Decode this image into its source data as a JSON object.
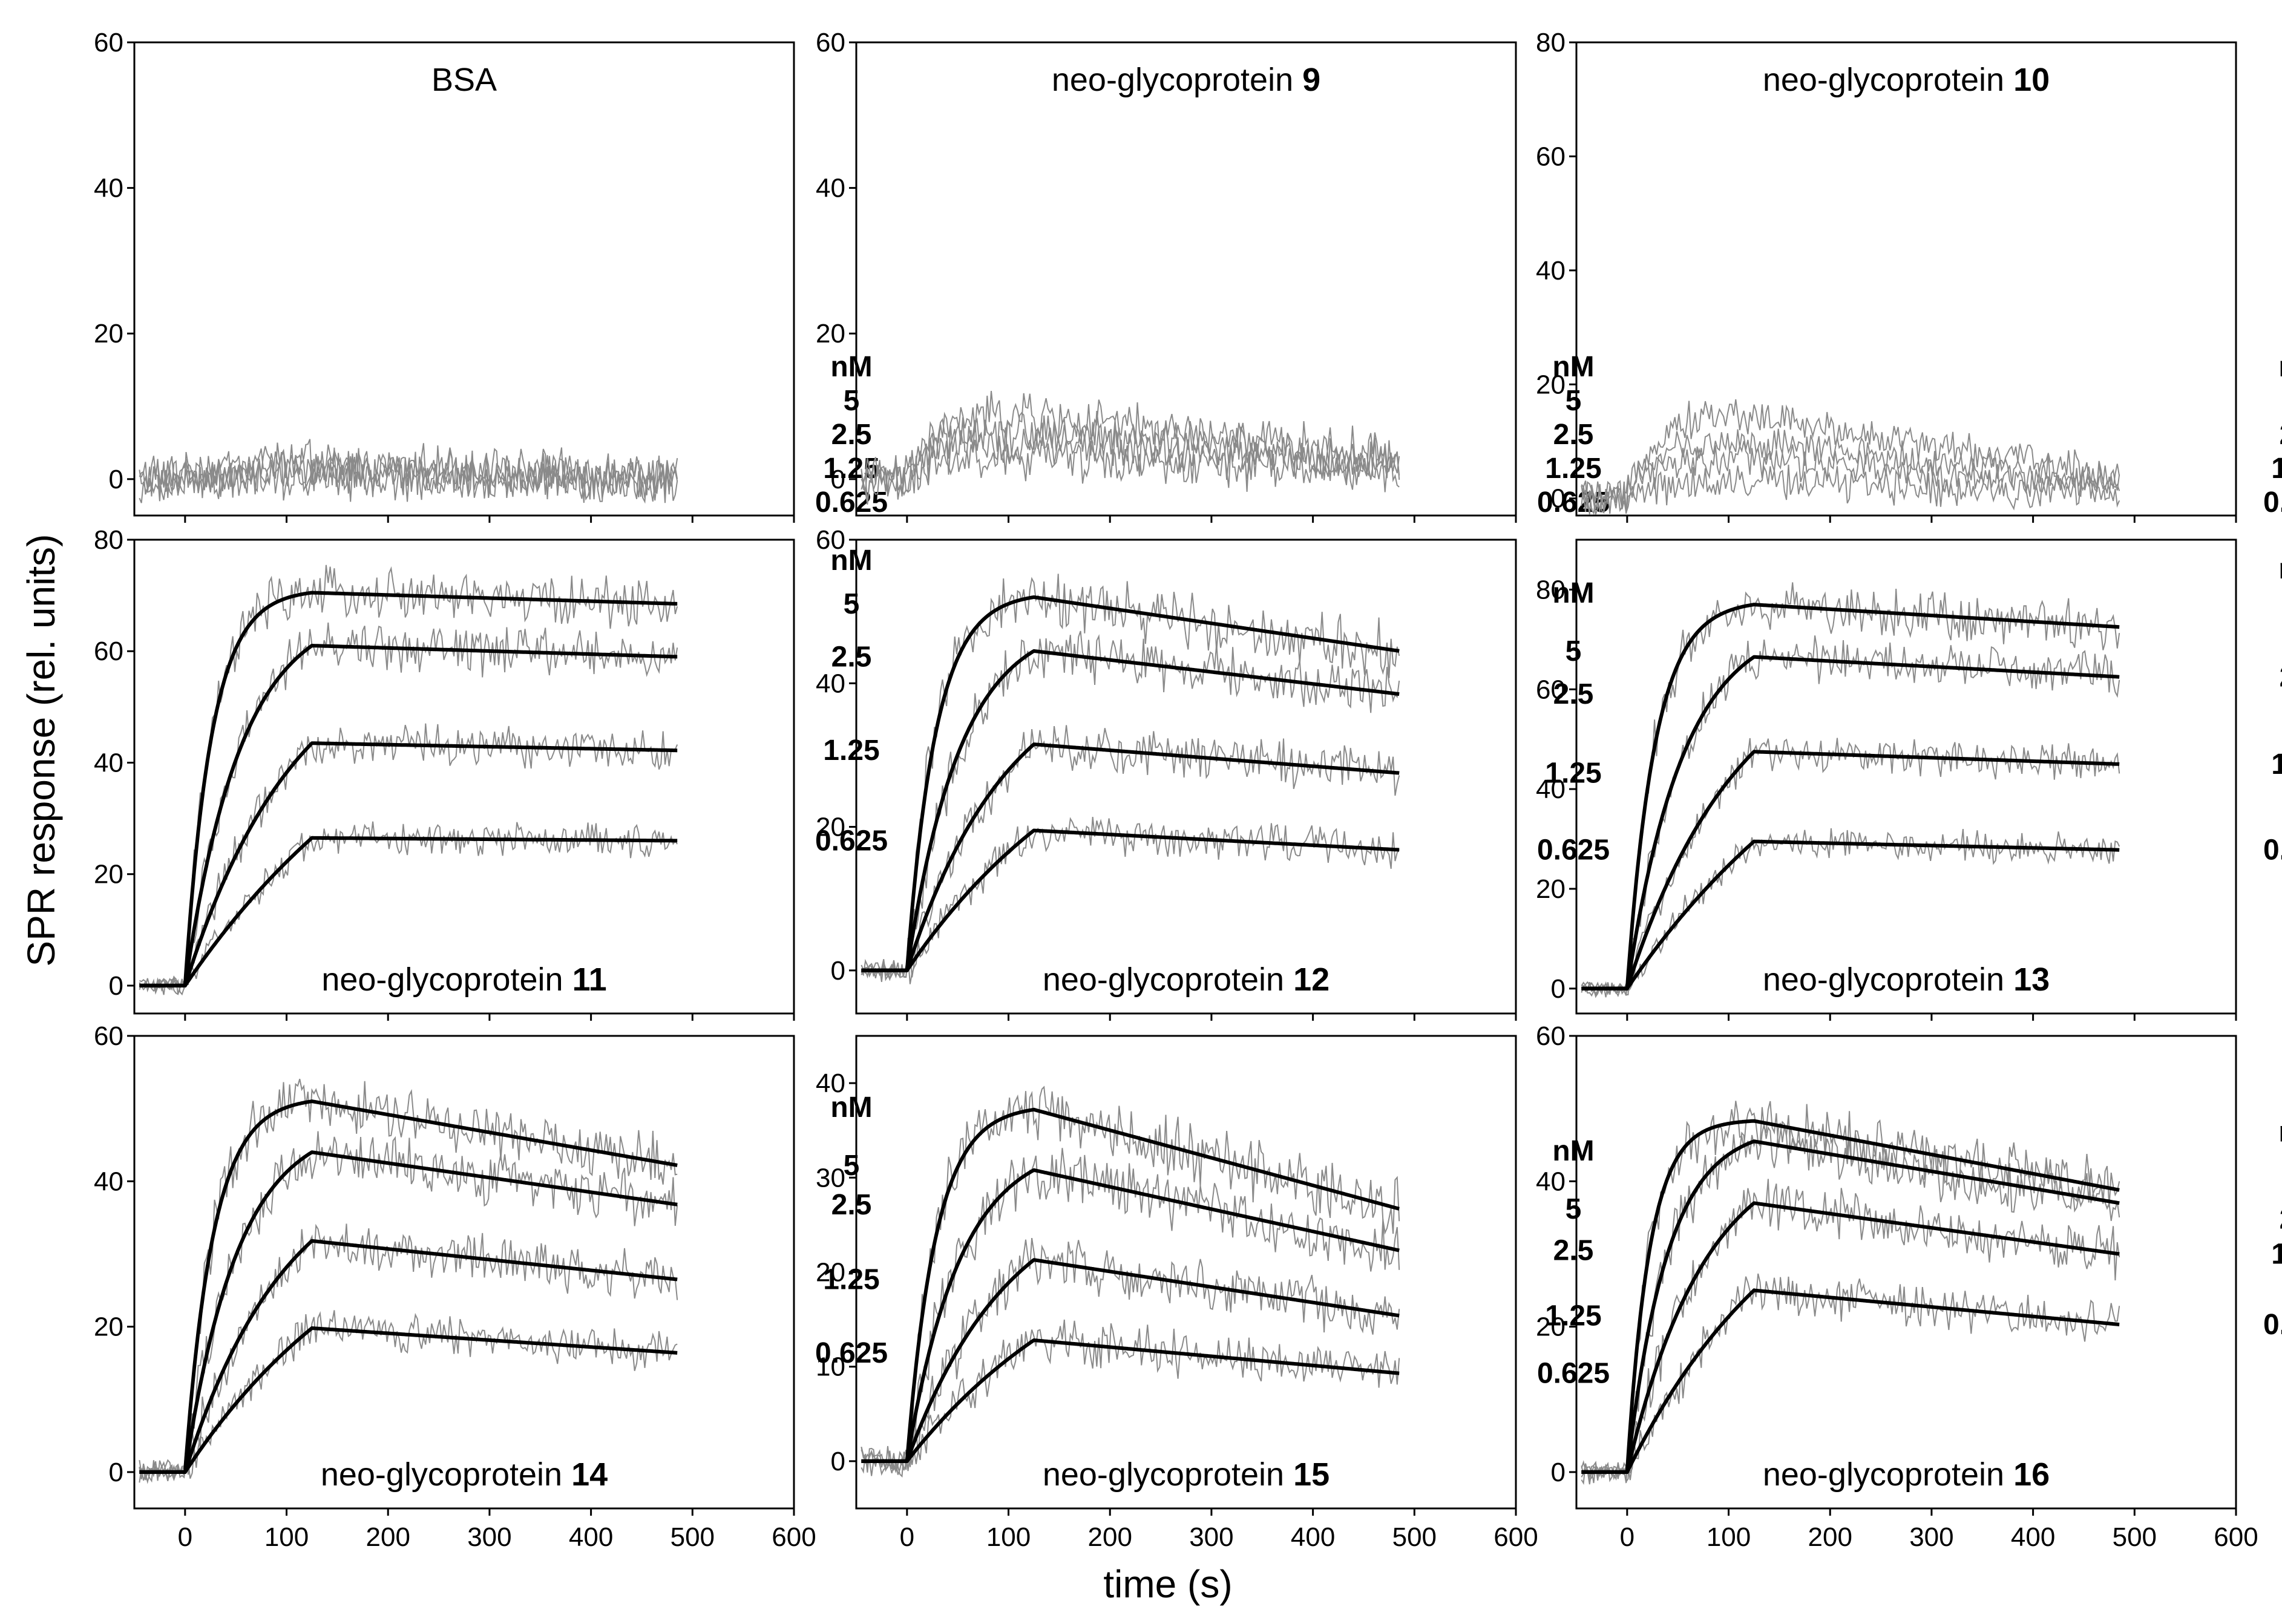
{
  "figure": {
    "x_axis_title": "time (s)",
    "y_axis_title": "SPR response (rel. units)"
  },
  "colors": {
    "fit": "#000000",
    "raw": "#8a8a8a",
    "axis": "#000000"
  },
  "chart_data": [
    {
      "type": "line",
      "title": "BSA",
      "title_prefix": "BSA",
      "title_number": "",
      "title_position": "top",
      "xlim": [
        -50,
        600
      ],
      "ylim": [
        -5,
        60
      ],
      "xticks": [
        0,
        100,
        200,
        300,
        400,
        500,
        600
      ],
      "yticks": [
        0,
        20,
        40,
        60
      ],
      "show_xtick_labels": false,
      "unit_label": "nM",
      "concentration_labels": [
        "5",
        "2.5",
        "1.25",
        "0.625"
      ],
      "raw_data": [
        {
          "name": "5",
          "plateau": 0,
          "tend": 0,
          "noise": 2.5,
          "peak": 2
        },
        {
          "name": "2.5",
          "plateau": 0,
          "tend": 0,
          "noise": 2.5,
          "peak": 1.5
        },
        {
          "name": "1.25",
          "plateau": 0,
          "tend": 0,
          "noise": 2.5,
          "peak": 1
        },
        {
          "name": "0.625",
          "plateau": 0,
          "tend": 0,
          "noise": 2.5,
          "peak": 0.5
        }
      ],
      "series": []
    },
    {
      "type": "line",
      "title": "neo-glycoprotein 9",
      "title_prefix": "neo-glycoprotein ",
      "title_number": "9",
      "title_position": "top",
      "xlim": [
        -50,
        600
      ],
      "ylim": [
        -5,
        60
      ],
      "xticks": [
        0,
        100,
        200,
        300,
        400,
        500,
        600
      ],
      "yticks": [
        0,
        20,
        40,
        60
      ],
      "show_xtick_labels": false,
      "unit_label": "nM",
      "concentration_labels": [
        "5",
        "2.5",
        "1.25",
        "0.625"
      ],
      "raw_data": [
        {
          "name": "5",
          "plateau": 9,
          "tend": 3,
          "noise": 2.5,
          "peak": 9
        },
        {
          "name": "2.5",
          "plateau": 7,
          "tend": 2,
          "noise": 2.5,
          "peak": 7
        },
        {
          "name": "1.25",
          "plateau": 5,
          "tend": 2,
          "noise": 2.5,
          "peak": 5
        },
        {
          "name": "0.625",
          "plateau": 3,
          "tend": 1,
          "noise": 2.5,
          "peak": 3
        }
      ],
      "series": []
    },
    {
      "type": "line",
      "title": "neo-glycoprotein 10",
      "title_prefix": "neo-glycoprotein ",
      "title_number": "10",
      "title_position": "top",
      "xlim": [
        -50,
        600
      ],
      "ylim": [
        -3,
        80
      ],
      "xticks": [
        0,
        100,
        200,
        300,
        400,
        500,
        600
      ],
      "yticks": [
        0,
        20,
        40,
        60,
        80
      ],
      "show_xtick_labels": false,
      "unit_label": "nM",
      "concentration_labels": [
        "5",
        "2.5",
        "1.25",
        "0.625"
      ],
      "raw_data": [
        {
          "name": "5",
          "plateau": 15,
          "tend": 4,
          "noise": 2.5,
          "peak": 15
        },
        {
          "name": "2.5",
          "plateau": 10,
          "tend": 3,
          "noise": 2.5,
          "peak": 10
        },
        {
          "name": "1.25",
          "plateau": 7,
          "tend": 2,
          "noise": 2.5,
          "peak": 7
        },
        {
          "name": "0.625",
          "plateau": 3,
          "tend": 1,
          "noise": 2.5,
          "peak": 3
        }
      ],
      "series": []
    },
    {
      "type": "line",
      "title": "neo-glycoprotein 11",
      "title_prefix": "neo-glycoprotein ",
      "title_number": "11",
      "title_position": "bottom",
      "xlim": [
        -50,
        600
      ],
      "ylim": [
        -5,
        80
      ],
      "xticks": [
        0,
        100,
        200,
        300,
        400,
        500,
        600
      ],
      "yticks": [
        0,
        20,
        40,
        60,
        80
      ],
      "show_xtick_labels": false,
      "unit_label": "nM",
      "concentration_labels": [
        "5",
        "2.5",
        "1.25",
        "0.625"
      ],
      "series": [
        {
          "name": "5",
          "peak": 70.5,
          "end": 68.5,
          "k": 0.038
        },
        {
          "name": "2.5",
          "peak": 61,
          "end": 59,
          "k": 0.018
        },
        {
          "name": "1.25",
          "peak": 43.5,
          "end": 42.2,
          "k": 0.009
        },
        {
          "name": "0.625",
          "peak": 26.5,
          "end": 26,
          "k": 0.004
        }
      ]
    },
    {
      "type": "line",
      "title": "neo-glycoprotein 12",
      "title_prefix": "neo-glycoprotein ",
      "title_number": "12",
      "title_position": "bottom",
      "xlim": [
        -50,
        600
      ],
      "ylim": [
        -6,
        60
      ],
      "xticks": [
        0,
        100,
        200,
        300,
        400,
        500,
        600
      ],
      "yticks": [
        0,
        20,
        40,
        60
      ],
      "show_xtick_labels": false,
      "unit_label": "nM",
      "concentration_labels": [
        "5",
        "2.5",
        "1.25",
        "0.625"
      ],
      "series": [
        {
          "name": "5",
          "peak": 52,
          "end": 44.5,
          "k": 0.035
        },
        {
          "name": "2.5",
          "peak": 44.5,
          "end": 38.5,
          "k": 0.019
        },
        {
          "name": "1.25",
          "peak": 31.5,
          "end": 27.5,
          "k": 0.01
        },
        {
          "name": "0.625",
          "peak": 19.5,
          "end": 16.8,
          "k": 0.005
        }
      ]
    },
    {
      "type": "line",
      "title": "neo-glycoprotein 13",
      "title_prefix": "neo-glycoprotein ",
      "title_number": "13",
      "title_position": "bottom",
      "xlim": [
        -50,
        600
      ],
      "ylim": [
        -5,
        90
      ],
      "xticks": [
        0,
        100,
        200,
        300,
        400,
        500,
        600
      ],
      "yticks": [
        0,
        20,
        40,
        60,
        80
      ],
      "show_xtick_labels": false,
      "unit_label": "nM",
      "concentration_labels": [
        "5",
        "2.5",
        "1.25",
        "0.625"
      ],
      "series": [
        {
          "name": "5",
          "peak": 77,
          "end": 72.5,
          "k": 0.036
        },
        {
          "name": "2.5",
          "peak": 66.5,
          "end": 62.5,
          "k": 0.018
        },
        {
          "name": "1.25",
          "peak": 47.5,
          "end": 45,
          "k": 0.009
        },
        {
          "name": "0.625",
          "peak": 29.5,
          "end": 27.8,
          "k": 0.004
        }
      ]
    },
    {
      "type": "line",
      "title": "neo-glycoprotein 14",
      "title_prefix": "neo-glycoprotein ",
      "title_number": "14",
      "title_position": "bottom",
      "xlim": [
        -50,
        600
      ],
      "ylim": [
        -5,
        60
      ],
      "xticks": [
        0,
        100,
        200,
        300,
        400,
        500,
        600
      ],
      "yticks": [
        0,
        20,
        40,
        60
      ],
      "show_xtick_labels": true,
      "unit_label": "nM",
      "concentration_labels": [
        "5",
        "2.5",
        "1.25",
        "0.625"
      ],
      "series": [
        {
          "name": "5",
          "peak": 51,
          "end": 42.2,
          "k": 0.036
        },
        {
          "name": "2.5",
          "peak": 44,
          "end": 36.8,
          "k": 0.019
        },
        {
          "name": "1.25",
          "peak": 31.8,
          "end": 26.5,
          "k": 0.01
        },
        {
          "name": "0.625",
          "peak": 19.8,
          "end": 16.4,
          "k": 0.005
        }
      ]
    },
    {
      "type": "line",
      "title": "neo-glycoprotein 15",
      "title_prefix": "neo-glycoprotein ",
      "title_number": "15",
      "title_position": "bottom",
      "xlim": [
        -50,
        600
      ],
      "ylim": [
        -5,
        45
      ],
      "xticks": [
        0,
        100,
        200,
        300,
        400,
        500,
        600
      ],
      "yticks": [
        0,
        10,
        20,
        30,
        40
      ],
      "show_xtick_labels": true,
      "unit_label": "nM",
      "concentration_labels": [
        "5",
        "2.5",
        "1.25",
        "0.625"
      ],
      "series": [
        {
          "name": "5",
          "peak": 37.2,
          "end": 26.7,
          "k": 0.035
        },
        {
          "name": "2.5",
          "peak": 30.8,
          "end": 22.3,
          "k": 0.019
        },
        {
          "name": "1.25",
          "peak": 21.3,
          "end": 15.4,
          "k": 0.01
        },
        {
          "name": "0.625",
          "peak": 12.8,
          "end": 9.3,
          "k": 0.005
        }
      ]
    },
    {
      "type": "line",
      "title": "neo-glycoprotein 16",
      "title_prefix": "neo-glycoprotein ",
      "title_number": "16",
      "title_position": "bottom",
      "xlim": [
        -50,
        600
      ],
      "ylim": [
        -5,
        60
      ],
      "xticks": [
        0,
        100,
        200,
        300,
        400,
        500,
        600
      ],
      "yticks": [
        0,
        20,
        40,
        60
      ],
      "show_xtick_labels": true,
      "unit_label": "nM",
      "concentration_labels": [
        "5",
        "2.5",
        "1.25",
        "0.625"
      ],
      "series": [
        {
          "name": "5",
          "peak": 48.3,
          "end": 38.8,
          "k": 0.045
        },
        {
          "name": "2.5",
          "peak": 45.5,
          "end": 37,
          "k": 0.025
        },
        {
          "name": "1.25",
          "peak": 37,
          "end": 30,
          "k": 0.013
        },
        {
          "name": "0.625",
          "peak": 25,
          "end": 20.3,
          "k": 0.006
        }
      ]
    }
  ]
}
